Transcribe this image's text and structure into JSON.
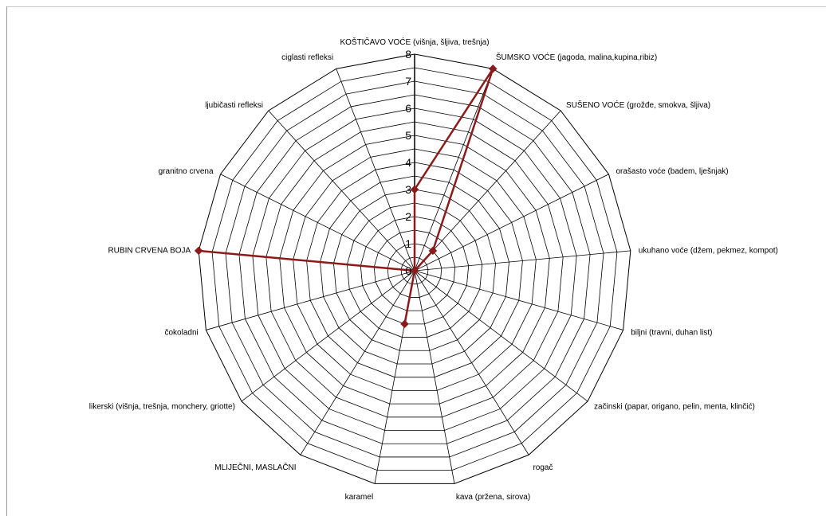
{
  "chart_data": {
    "type": "radar",
    "title": "",
    "rmin": 0,
    "rmax": 8,
    "ticks": [
      "0",
      "1",
      "2",
      "3",
      "4",
      "5",
      "6",
      "7",
      "8"
    ],
    "grid": true,
    "legend": "none",
    "categories": [
      "KOŠTIČAVO VOĆE (višnja, šljiva, trešnja)",
      "ŠUMSKO VOĆE (jagoda, malina,kupina,ribiz)",
      "SUŠENO VOĆE (grožđe, smokva, šljiva)",
      "orašasto voće (badem, lješnjak)",
      "ukuhano voće (džem, pekmez, kompot)",
      "biljni (travni, duhan list)",
      "začinski (papar, origano, pelin, menta, klinčić)",
      "rogač",
      "kava (pržena, sirova)",
      "karamel",
      "MLIJEČNI, MASLAČNI",
      "likerski (višnja, trešnja, monchery, griotte)",
      "čokoladni",
      "RUBIN CRVENA BOJA",
      "granitno crvena",
      "ljubičasti refleksi",
      "ciglasti refleksi"
    ],
    "series": [
      {
        "values": [
          3,
          8,
          1,
          0,
          0,
          0,
          0,
          0,
          0,
          2,
          0,
          0,
          0,
          8,
          0,
          0,
          0
        ]
      }
    ],
    "colors": {
      "series": "#8b1a1a",
      "grid": "#000000"
    }
  }
}
